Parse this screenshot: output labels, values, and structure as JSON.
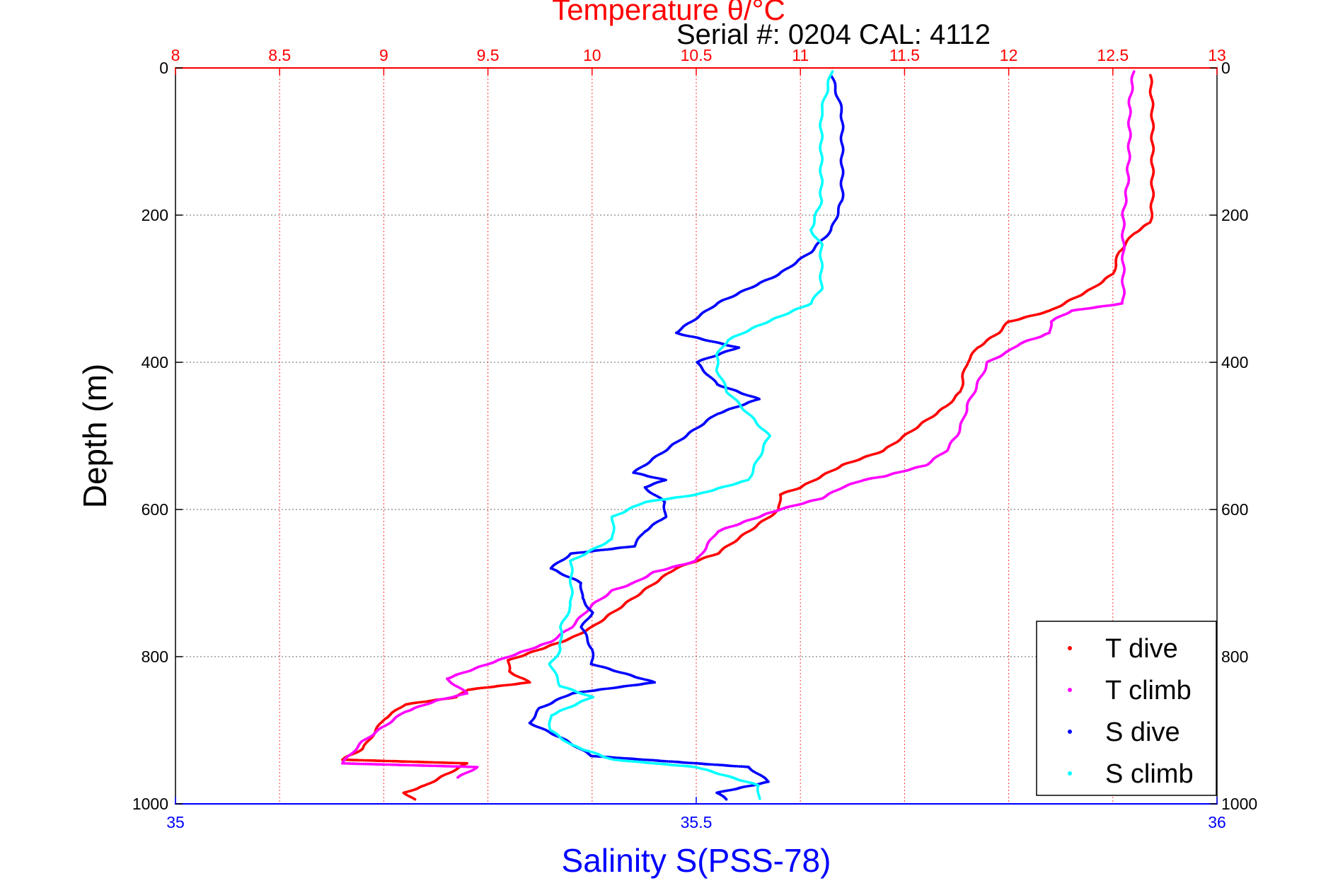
{
  "chart_data": {
    "type": "scatter",
    "title": "Temperature θ/°C",
    "subtitle": "Serial #: 0204  CAL: 4112",
    "ylabel": "Depth (m)",
    "xlabel": "Salinity S(PSS-78)",
    "ylim": [
      0,
      1000
    ],
    "y_reversed": true,
    "yticks": [
      0,
      200,
      400,
      600,
      800,
      1000
    ],
    "temp_axis": {
      "range": [
        8,
        13
      ],
      "ticks": [
        "8",
        "8.5",
        "9",
        "9.5",
        "10",
        "10.5",
        "11",
        "11.5",
        "12",
        "12.5",
        "13"
      ],
      "color": "#ff0000",
      "position": "top"
    },
    "sal_axis": {
      "range": [
        35,
        36
      ],
      "ticks": [
        "35",
        "35.5",
        "36"
      ],
      "color": "#0000ff",
      "position": "bottom"
    },
    "grid": true,
    "legend_position": "bottom-right",
    "series": [
      {
        "name": "T dive",
        "axis": "temp",
        "color": "#ff0000",
        "points": [
          [
            12.68,
            10
          ],
          [
            12.69,
            60
          ],
          [
            12.69,
            120
          ],
          [
            12.69,
            180
          ],
          [
            12.68,
            210
          ],
          [
            12.6,
            225
          ],
          [
            12.53,
            250
          ],
          [
            12.5,
            280
          ],
          [
            12.4,
            300
          ],
          [
            12.2,
            330
          ],
          [
            12.0,
            345
          ],
          [
            11.95,
            360
          ],
          [
            11.85,
            380
          ],
          [
            11.8,
            400
          ],
          [
            11.78,
            420
          ],
          [
            11.77,
            440
          ],
          [
            11.7,
            460
          ],
          [
            11.6,
            480
          ],
          [
            11.5,
            500
          ],
          [
            11.4,
            520
          ],
          [
            11.2,
            540
          ],
          [
            11.1,
            555
          ],
          [
            11.0,
            570
          ],
          [
            10.9,
            580
          ],
          [
            10.9,
            600
          ],
          [
            10.8,
            620
          ],
          [
            10.7,
            640
          ],
          [
            10.6,
            660
          ],
          [
            10.4,
            680
          ],
          [
            10.3,
            700
          ],
          [
            10.2,
            720
          ],
          [
            10.1,
            740
          ],
          [
            10.0,
            760
          ],
          [
            9.9,
            775
          ],
          [
            9.8,
            785
          ],
          [
            9.7,
            795
          ],
          [
            9.6,
            805
          ],
          [
            9.6,
            820
          ],
          [
            9.7,
            835
          ],
          [
            9.55,
            840
          ],
          [
            9.4,
            845
          ],
          [
            9.35,
            855
          ],
          [
            9.1,
            865
          ],
          [
            9.0,
            885
          ],
          [
            8.95,
            905
          ],
          [
            8.9,
            925
          ],
          [
            8.8,
            940
          ],
          [
            9.4,
            945
          ],
          [
            9.3,
            960
          ],
          [
            9.2,
            975
          ],
          [
            9.1,
            985
          ],
          [
            9.15,
            995
          ]
        ]
      },
      {
        "name": "T climb",
        "axis": "temp",
        "color": "#ff00ff",
        "points": [
          [
            12.6,
            5
          ],
          [
            12.58,
            50
          ],
          [
            12.58,
            100
          ],
          [
            12.57,
            160
          ],
          [
            12.55,
            200
          ],
          [
            12.55,
            250
          ],
          [
            12.55,
            300
          ],
          [
            12.55,
            320
          ],
          [
            12.3,
            330
          ],
          [
            12.2,
            345
          ],
          [
            12.2,
            360
          ],
          [
            12.05,
            375
          ],
          [
            12.0,
            385
          ],
          [
            11.9,
            400
          ],
          [
            11.85,
            430
          ],
          [
            11.8,
            460
          ],
          [
            11.78,
            480
          ],
          [
            11.75,
            500
          ],
          [
            11.7,
            520
          ],
          [
            11.6,
            540
          ],
          [
            11.4,
            555
          ],
          [
            11.3,
            560
          ],
          [
            11.2,
            570
          ],
          [
            11.1,
            585
          ],
          [
            10.9,
            600
          ],
          [
            10.8,
            610
          ],
          [
            10.7,
            620
          ],
          [
            10.6,
            630
          ],
          [
            10.55,
            650
          ],
          [
            10.5,
            670
          ],
          [
            10.3,
            685
          ],
          [
            10.2,
            700
          ],
          [
            10.1,
            710
          ],
          [
            10.0,
            730
          ],
          [
            9.9,
            760
          ],
          [
            9.8,
            780
          ],
          [
            9.6,
            800
          ],
          [
            9.4,
            820
          ],
          [
            9.3,
            830
          ],
          [
            9.4,
            850
          ],
          [
            9.25,
            860
          ],
          [
            9.1,
            875
          ],
          [
            9.0,
            895
          ],
          [
            8.9,
            915
          ],
          [
            8.85,
            930
          ],
          [
            8.8,
            945
          ],
          [
            9.45,
            950
          ],
          [
            9.35,
            965
          ]
        ]
      },
      {
        "name": "S dive",
        "axis": "sal",
        "color": "#0000ff",
        "points": [
          [
            35.63,
            10
          ],
          [
            35.64,
            60
          ],
          [
            35.64,
            120
          ],
          [
            35.64,
            180
          ],
          [
            35.63,
            220
          ],
          [
            35.61,
            250
          ],
          [
            35.58,
            280
          ],
          [
            35.55,
            300
          ],
          [
            35.52,
            320
          ],
          [
            35.5,
            340
          ],
          [
            35.48,
            360
          ],
          [
            35.54,
            380
          ],
          [
            35.5,
            400
          ],
          [
            35.52,
            430
          ],
          [
            35.56,
            450
          ],
          [
            35.52,
            470
          ],
          [
            35.5,
            490
          ],
          [
            35.48,
            510
          ],
          [
            35.46,
            530
          ],
          [
            35.44,
            550
          ],
          [
            35.47,
            560
          ],
          [
            35.45,
            570
          ],
          [
            35.47,
            590
          ],
          [
            35.47,
            610
          ],
          [
            35.45,
            630
          ],
          [
            35.44,
            650
          ],
          [
            35.38,
            660
          ],
          [
            35.36,
            680
          ],
          [
            35.39,
            700
          ],
          [
            35.39,
            720
          ],
          [
            35.4,
            740
          ],
          [
            35.39,
            760
          ],
          [
            35.4,
            790
          ],
          [
            35.4,
            810
          ],
          [
            35.46,
            835
          ],
          [
            35.38,
            850
          ],
          [
            35.35,
            870
          ],
          [
            35.34,
            890
          ],
          [
            35.37,
            910
          ],
          [
            35.4,
            935
          ],
          [
            35.55,
            950
          ],
          [
            35.57,
            970
          ],
          [
            35.52,
            985
          ],
          [
            35.53,
            995
          ]
        ]
      },
      {
        "name": "S climb",
        "axis": "sal",
        "color": "#00ffff",
        "points": [
          [
            35.63,
            5
          ],
          [
            35.62,
            60
          ],
          [
            35.62,
            120
          ],
          [
            35.62,
            180
          ],
          [
            35.61,
            220
          ],
          [
            35.62,
            240
          ],
          [
            35.62,
            300
          ],
          [
            35.61,
            320
          ],
          [
            35.56,
            350
          ],
          [
            35.53,
            370
          ],
          [
            35.52,
            390
          ],
          [
            35.52,
            410
          ],
          [
            35.53,
            440
          ],
          [
            35.55,
            470
          ],
          [
            35.57,
            500
          ],
          [
            35.56,
            530
          ],
          [
            35.55,
            560
          ],
          [
            35.5,
            580
          ],
          [
            35.45,
            590
          ],
          [
            35.42,
            610
          ],
          [
            35.42,
            640
          ],
          [
            35.38,
            670
          ],
          [
            35.38,
            700
          ],
          [
            35.38,
            730
          ],
          [
            35.37,
            760
          ],
          [
            35.37,
            790
          ],
          [
            35.36,
            810
          ],
          [
            35.37,
            840
          ],
          [
            35.4,
            855
          ],
          [
            35.36,
            880
          ],
          [
            35.36,
            900
          ],
          [
            35.38,
            920
          ],
          [
            35.42,
            940
          ],
          [
            35.5,
            950
          ],
          [
            35.56,
            975
          ],
          [
            35.56,
            995
          ]
        ]
      }
    ]
  }
}
